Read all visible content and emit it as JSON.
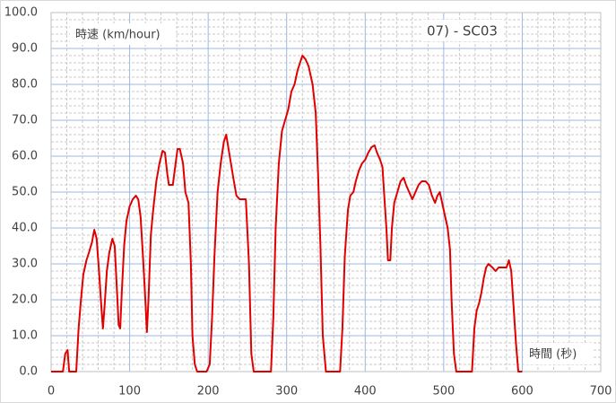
{
  "chart_data": {
    "type": "line",
    "y_label": "時速 (km/hour)",
    "x_label": "時間 (秒)",
    "annotation": "07) - SC03",
    "color": "#e00000",
    "grid": true,
    "minor_grid": true,
    "xlim": [
      0,
      700
    ],
    "xticks": [
      0,
      100,
      200,
      300,
      400,
      500,
      600,
      700
    ],
    "ylim": [
      0,
      100
    ],
    "yticks": [
      {
        "value": 0,
        "label": "0.0"
      },
      {
        "value": 10,
        "label": "10.0"
      },
      {
        "value": 20,
        "label": "20.0"
      },
      {
        "value": 30,
        "label": "30.0"
      },
      {
        "value": 40,
        "label": "40.0"
      },
      {
        "value": 50,
        "label": "50.0"
      },
      {
        "value": 60,
        "label": "60.0"
      },
      {
        "value": 70,
        "label": "70.0"
      },
      {
        "value": 80,
        "label": "80.0"
      },
      {
        "value": 90,
        "label": "90.0"
      },
      {
        "value": 100,
        "label": "100.0"
      }
    ],
    "x": [
      0,
      15,
      18,
      21,
      23,
      30,
      32,
      35,
      38,
      41,
      45,
      48,
      52,
      55,
      58,
      61,
      64,
      66,
      68,
      71,
      74,
      78,
      81,
      84,
      86,
      88,
      90,
      93,
      96,
      100,
      104,
      108,
      111,
      114,
      117,
      120,
      122,
      124,
      127,
      130,
      134,
      138,
      142,
      145,
      148,
      150,
      155,
      158,
      161,
      164,
      168,
      171,
      175,
      178,
      180,
      183,
      186,
      198,
      202,
      205,
      208,
      212,
      216,
      220,
      223,
      226,
      229,
      232,
      236,
      240,
      248,
      252,
      255,
      258,
      280,
      283,
      286,
      290,
      294,
      298,
      302,
      306,
      310,
      314,
      317,
      320,
      324,
      328,
      333,
      337,
      340,
      343,
      346,
      350,
      368,
      371,
      374,
      378,
      381,
      385,
      388,
      392,
      396,
      400,
      404,
      408,
      412,
      415,
      419,
      422,
      424,
      427,
      429,
      432,
      434,
      437,
      441,
      445,
      449,
      452,
      456,
      460,
      464,
      468,
      472,
      477,
      481,
      485,
      489,
      492,
      495,
      498,
      501,
      505,
      508,
      510,
      513,
      516,
      536,
      539,
      542,
      545,
      548,
      551,
      554,
      557,
      562,
      566,
      570,
      575,
      580,
      583,
      586,
      589,
      592,
      595,
      600
    ],
    "values": [
      0,
      0,
      5,
      6,
      0,
      0,
      0,
      12,
      20,
      27,
      31,
      33,
      36,
      39.5,
      37,
      28,
      18,
      12,
      18,
      28,
      33,
      37,
      35,
      22,
      13,
      12,
      22,
      35,
      42,
      46,
      48,
      49,
      48,
      43,
      32,
      20,
      11,
      20,
      38,
      45,
      53,
      58,
      61.5,
      61,
      55,
      52,
      52,
      57,
      62,
      62,
      58,
      50,
      47,
      30,
      10,
      2,
      0,
      0,
      2,
      15,
      32,
      50,
      58,
      64,
      66,
      62,
      58,
      54,
      49,
      48,
      48,
      30,
      5,
      0,
      0,
      15,
      40,
      58,
      67,
      70,
      73,
      78,
      80,
      84,
      86,
      88,
      87,
      85,
      80,
      72,
      55,
      35,
      10,
      0,
      0,
      12,
      32,
      45,
      49,
      50,
      53,
      56,
      58,
      59,
      61,
      62.5,
      63,
      61,
      59,
      57,
      50,
      40,
      31,
      31,
      40,
      47,
      50,
      53,
      54,
      52,
      50,
      48,
      50,
      52,
      53,
      53,
      52,
      49,
      47,
      49,
      50,
      47,
      44,
      40,
      34,
      20,
      5,
      0,
      0,
      12,
      17,
      19,
      22,
      26,
      29,
      30,
      29,
      28,
      29,
      29,
      29,
      31,
      28,
      18,
      8,
      0,
      0
    ]
  }
}
